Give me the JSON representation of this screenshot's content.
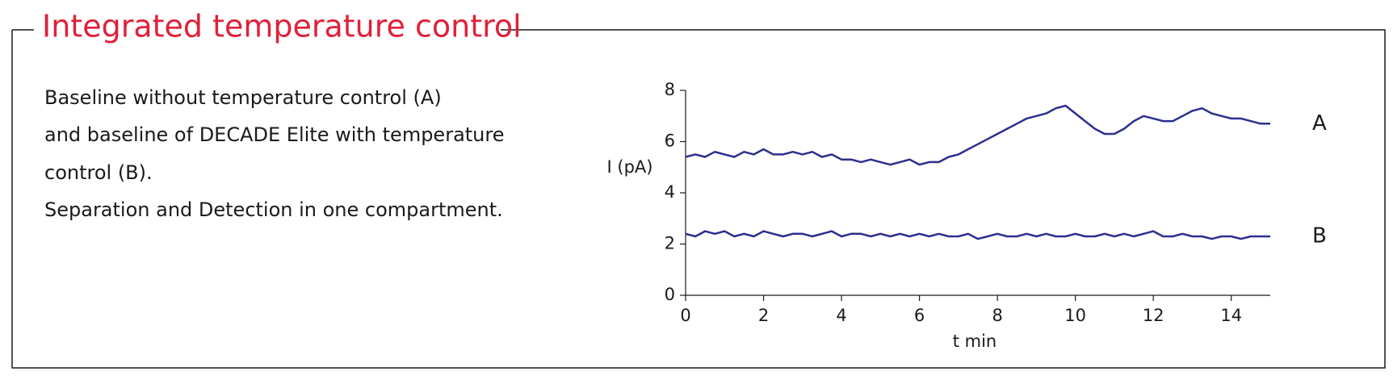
{
  "panel": {
    "title": "Integrated temperature control",
    "text": [
      "Baseline without temperature control (A)",
      "and baseline of DECADE Elite with temperature",
      "control (B).",
      "Separation and Detection in one compartment."
    ]
  },
  "chart_data": {
    "type": "line",
    "x_label": "t min",
    "y_label": "I (pA)",
    "x": [
      0,
      0.25,
      0.5,
      0.75,
      1,
      1.25,
      1.5,
      1.75,
      2,
      2.25,
      2.5,
      2.75,
      3,
      3.25,
      3.5,
      3.75,
      4,
      4.25,
      4.5,
      4.75,
      5,
      5.25,
      5.5,
      5.75,
      6,
      6.25,
      6.5,
      6.75,
      7,
      7.25,
      7.5,
      7.75,
      8,
      8.25,
      8.5,
      8.75,
      9,
      9.25,
      9.5,
      9.75,
      10,
      10.25,
      10.5,
      10.75,
      11,
      11.25,
      11.5,
      11.75,
      12,
      12.25,
      12.5,
      12.75,
      13,
      13.25,
      13.5,
      13.75,
      14,
      14.25,
      14.5,
      14.75,
      15
    ],
    "series": [
      {
        "name": "A",
        "color": "#2b2f8f",
        "values": [
          5.4,
          5.5,
          5.4,
          5.6,
          5.5,
          5.4,
          5.6,
          5.5,
          5.7,
          5.5,
          5.5,
          5.6,
          5.5,
          5.6,
          5.4,
          5.5,
          5.3,
          5.3,
          5.2,
          5.3,
          5.2,
          5.1,
          5.2,
          5.3,
          5.1,
          5.2,
          5.2,
          5.4,
          5.5,
          5.7,
          5.9,
          6.1,
          6.3,
          6.5,
          6.7,
          6.9,
          7.0,
          7.1,
          7.3,
          7.4,
          7.1,
          6.8,
          6.5,
          6.3,
          6.3,
          6.5,
          6.8,
          7.0,
          6.9,
          6.8,
          6.8,
          7.0,
          7.2,
          7.3,
          7.1,
          7.0,
          6.9,
          6.9,
          6.8,
          6.7,
          6.7
        ]
      },
      {
        "name": "B",
        "color": "#2b2f8f",
        "values": [
          2.4,
          2.3,
          2.5,
          2.4,
          2.5,
          2.3,
          2.4,
          2.3,
          2.5,
          2.4,
          2.3,
          2.4,
          2.4,
          2.3,
          2.4,
          2.5,
          2.3,
          2.4,
          2.4,
          2.3,
          2.4,
          2.3,
          2.4,
          2.3,
          2.4,
          2.3,
          2.4,
          2.3,
          2.3,
          2.4,
          2.2,
          2.3,
          2.4,
          2.3,
          2.3,
          2.4,
          2.3,
          2.4,
          2.3,
          2.3,
          2.4,
          2.3,
          2.3,
          2.4,
          2.3,
          2.4,
          2.3,
          2.4,
          2.5,
          2.3,
          2.3,
          2.4,
          2.3,
          2.3,
          2.2,
          2.3,
          2.3,
          2.2,
          2.3,
          2.3,
          2.3
        ]
      }
    ],
    "xlim": [
      0,
      15
    ],
    "xticks": [
      0,
      2,
      4,
      6,
      8,
      10,
      12,
      14
    ],
    "ylim": [
      0,
      8
    ],
    "yticks": [
      0,
      2,
      4,
      6,
      8
    ],
    "grid": false
  }
}
